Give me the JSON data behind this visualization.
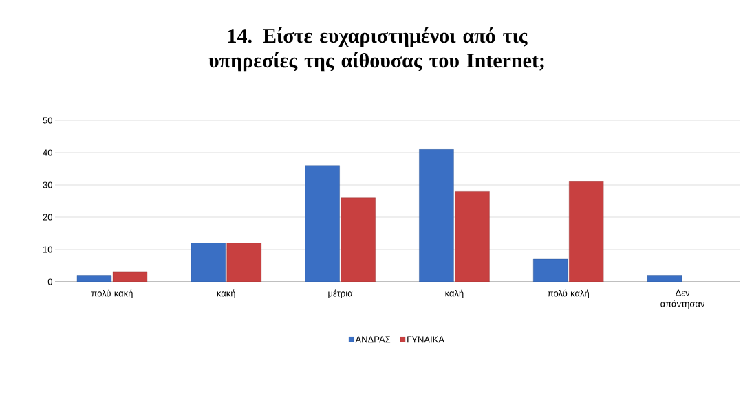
{
  "chart_data": {
    "type": "bar",
    "title": "14. Είστε ευχαριστημένοι από τις υπηρεσίες της αίθουσας του Internet;",
    "categories": [
      "πολύ κακή",
      "κακή",
      "μέτρια",
      "καλή",
      "πολύ καλή",
      "Δεν απάντησαν"
    ],
    "series": [
      {
        "name": "ΑΝΔΡΑΣ",
        "color": "#3a6fc4",
        "values": [
          2,
          12,
          36,
          41,
          7,
          2
        ]
      },
      {
        "name": "ΓΥΝΑΙΚΑ",
        "color": "#c84040",
        "values": [
          3,
          12,
          26,
          28,
          31,
          null
        ]
      }
    ],
    "ylim": [
      0,
      50
    ],
    "yticks": [
      0,
      10,
      20,
      30,
      40,
      50
    ],
    "grid": "y",
    "legend": "bottom"
  }
}
